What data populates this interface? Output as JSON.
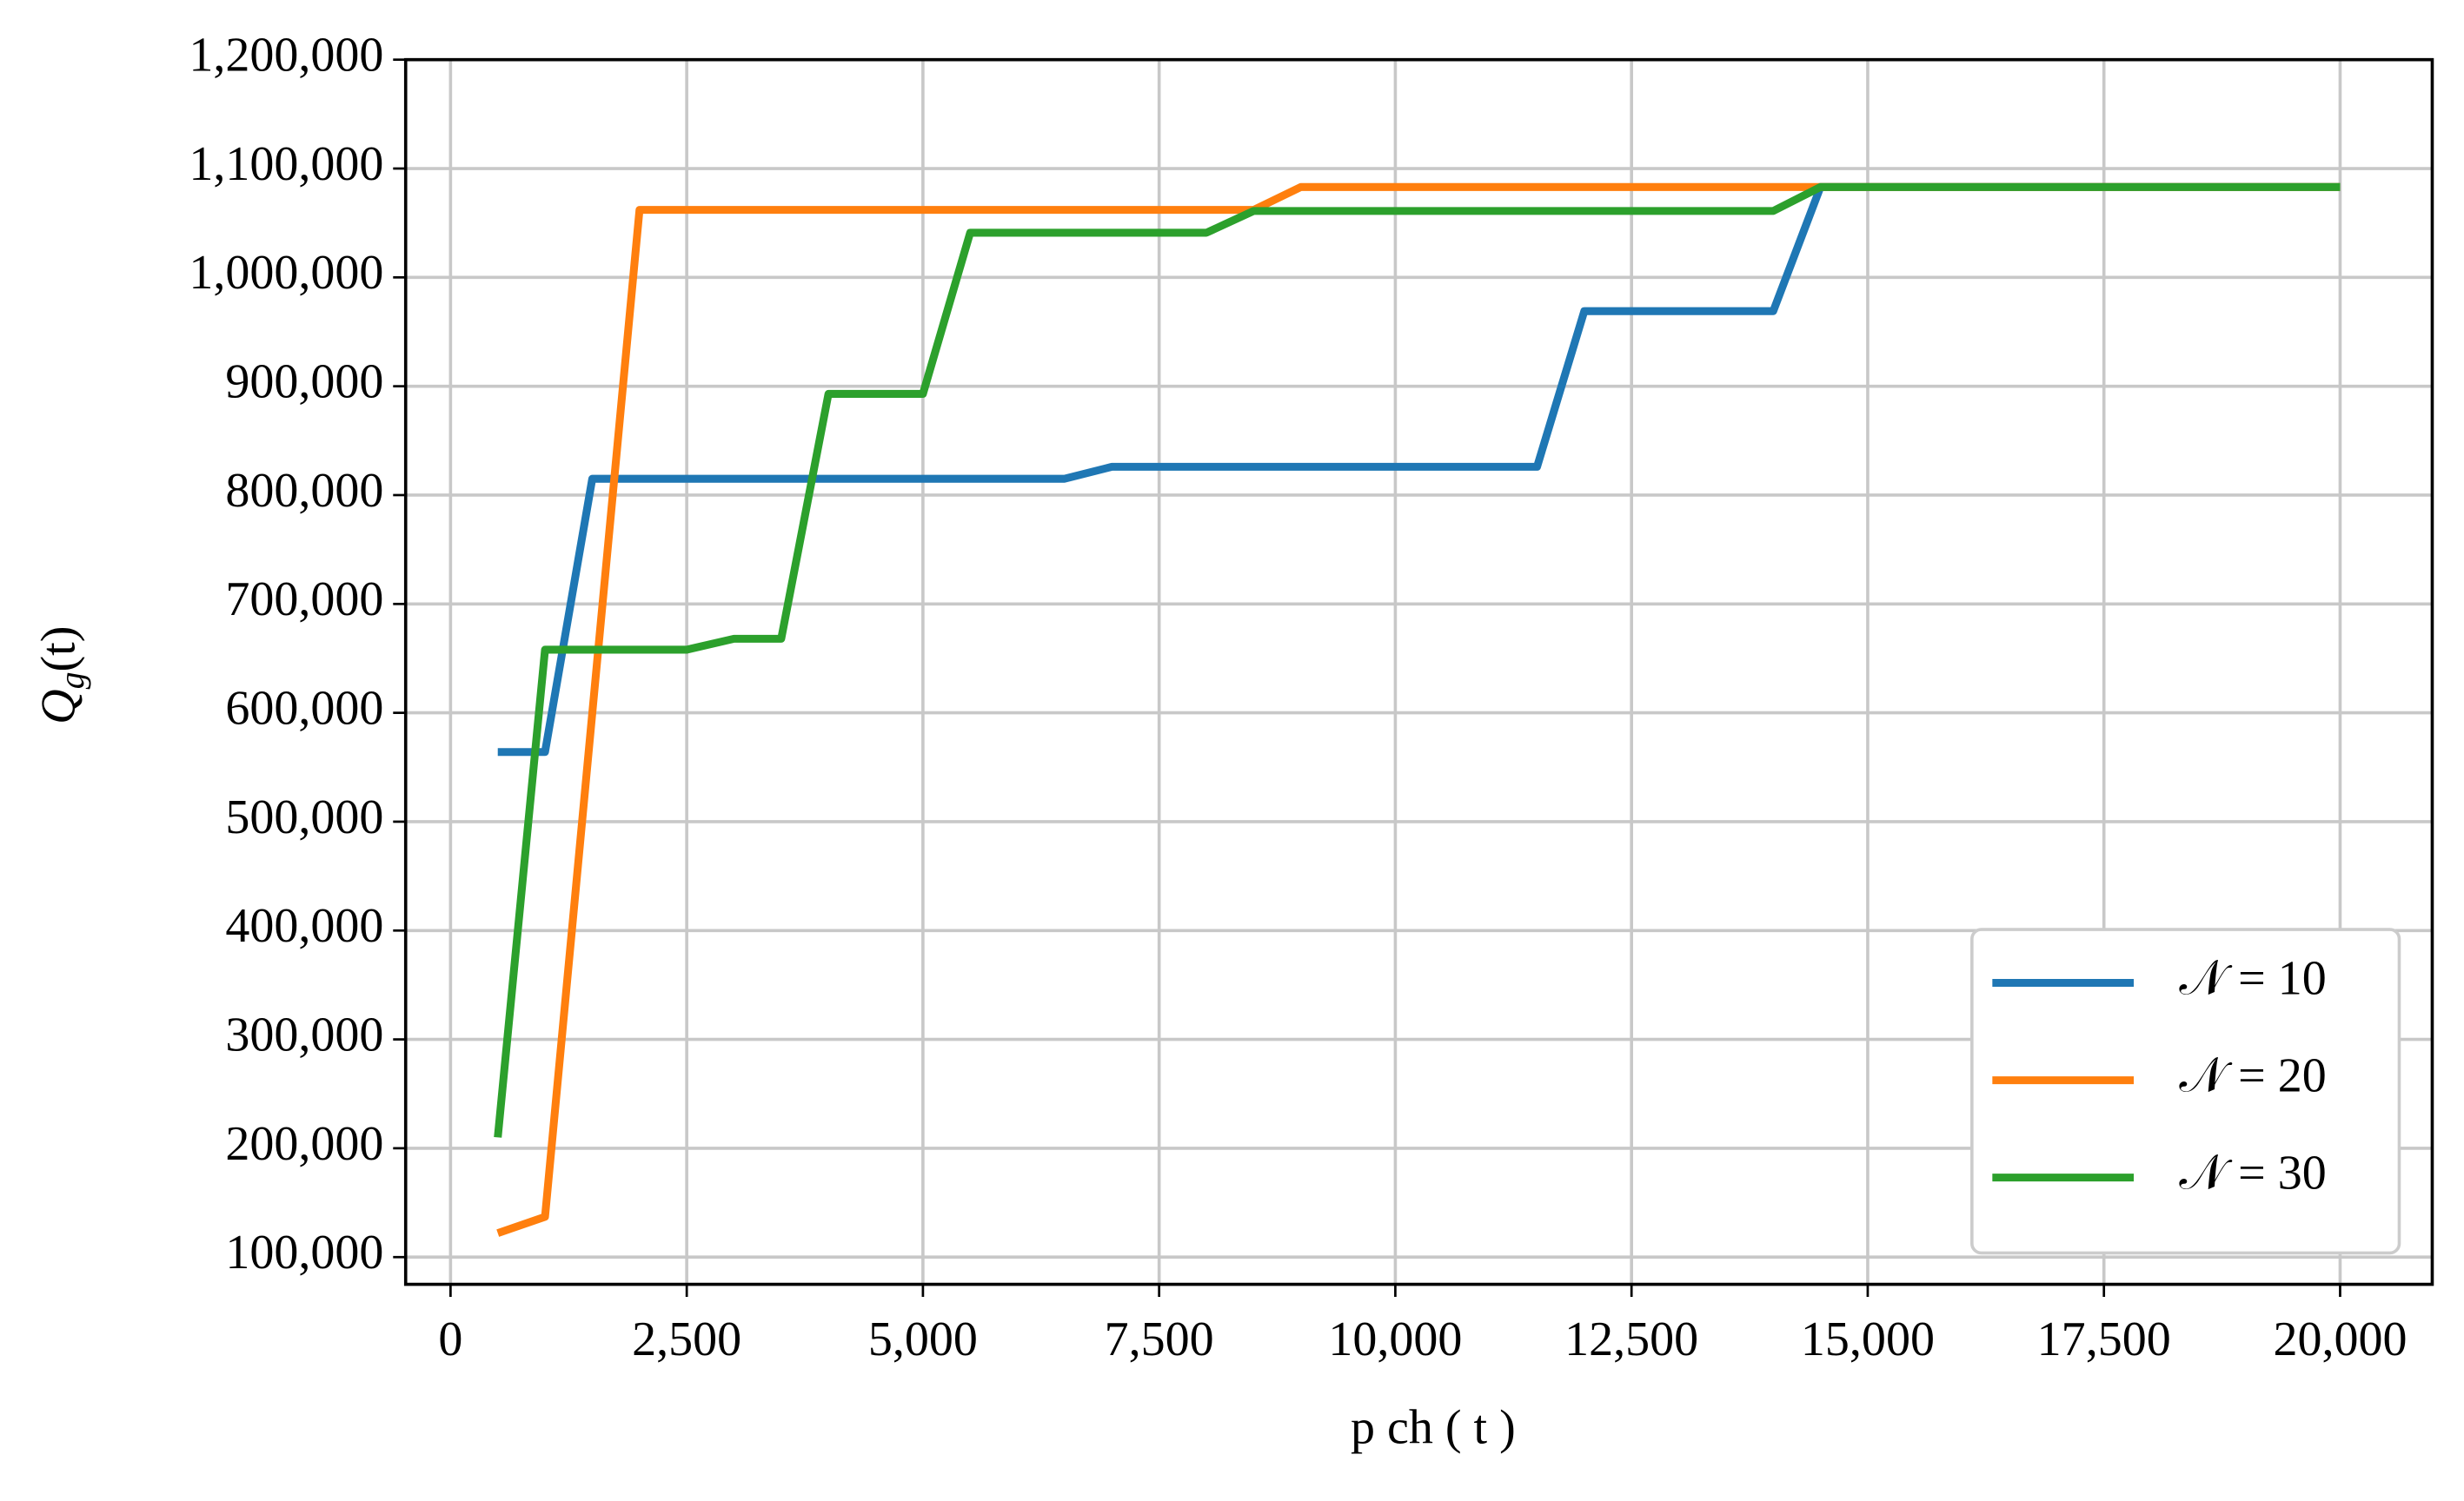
{
  "chart_data": {
    "type": "line",
    "xlabel": "p  ch ( t )",
    "ylabel": [
      "Q",
      "g",
      "(t)"
    ],
    "xlim": [
      -475,
      20975
    ],
    "ylim": [
      75000,
      1200000
    ],
    "xticks": [
      0,
      {
        "value": 2500,
        "label": "2,500"
      },
      {
        "value": 5000,
        "label": "5,000"
      },
      {
        "value": 7500,
        "label": "7,500"
      },
      {
        "value": 10000,
        "label": "10,000"
      },
      {
        "value": 12500,
        "label": "12,500"
      },
      {
        "value": 15000,
        "label": "15,000"
      },
      {
        "value": 17500,
        "label": "17,500"
      },
      {
        "value": 20000,
        "label": "20,000"
      }
    ],
    "yticks": [
      {
        "value": 100000,
        "label": "100,000"
      },
      {
        "value": 200000,
        "label": "200,000"
      },
      {
        "value": 300000,
        "label": "300,000"
      },
      {
        "value": 400000,
        "label": "400,000"
      },
      {
        "value": 500000,
        "label": "500,000"
      },
      {
        "value": 600000,
        "label": "600,000"
      },
      {
        "value": 700000,
        "label": "700,000"
      },
      {
        "value": 800000,
        "label": "800,000"
      },
      {
        "value": 900000,
        "label": "900,000"
      },
      {
        "value": 1000000,
        "label": "1,000,000"
      },
      {
        "value": 1100000,
        "label": "1,100,000"
      },
      {
        "value": 1200000,
        "label": "1,200,000"
      }
    ],
    "grid": true,
    "legend": "lower right",
    "series": [
      {
        "name": "𝒩 = 10",
        "color": "#1f77b4",
        "x": [
          500,
          1000,
          1500,
          6500,
          7000,
          11500,
          12000,
          14000,
          14500,
          20000
        ],
        "values": [
          564000,
          564000,
          815000,
          815000,
          826000,
          826000,
          969000,
          969000,
          1083000,
          1083000
        ]
      },
      {
        "name": "𝒩 = 20",
        "color": "#ff7f0e",
        "x": [
          500,
          1000,
          2000,
          8500,
          9000,
          20000
        ],
        "values": [
          122000,
          137000,
          1062000,
          1062000,
          1083000,
          1083000
        ]
      },
      {
        "name": "𝒩 = 30",
        "color": "#2ca02c",
        "x": [
          500,
          1000,
          2500,
          3000,
          3500,
          4000,
          5000,
          5500,
          8000,
          8500,
          14000,
          14500,
          20000
        ],
        "values": [
          210000,
          658000,
          658000,
          668000,
          668000,
          893000,
          893000,
          1041000,
          1041000,
          1061000,
          1061000,
          1083000,
          1083000
        ]
      }
    ]
  }
}
